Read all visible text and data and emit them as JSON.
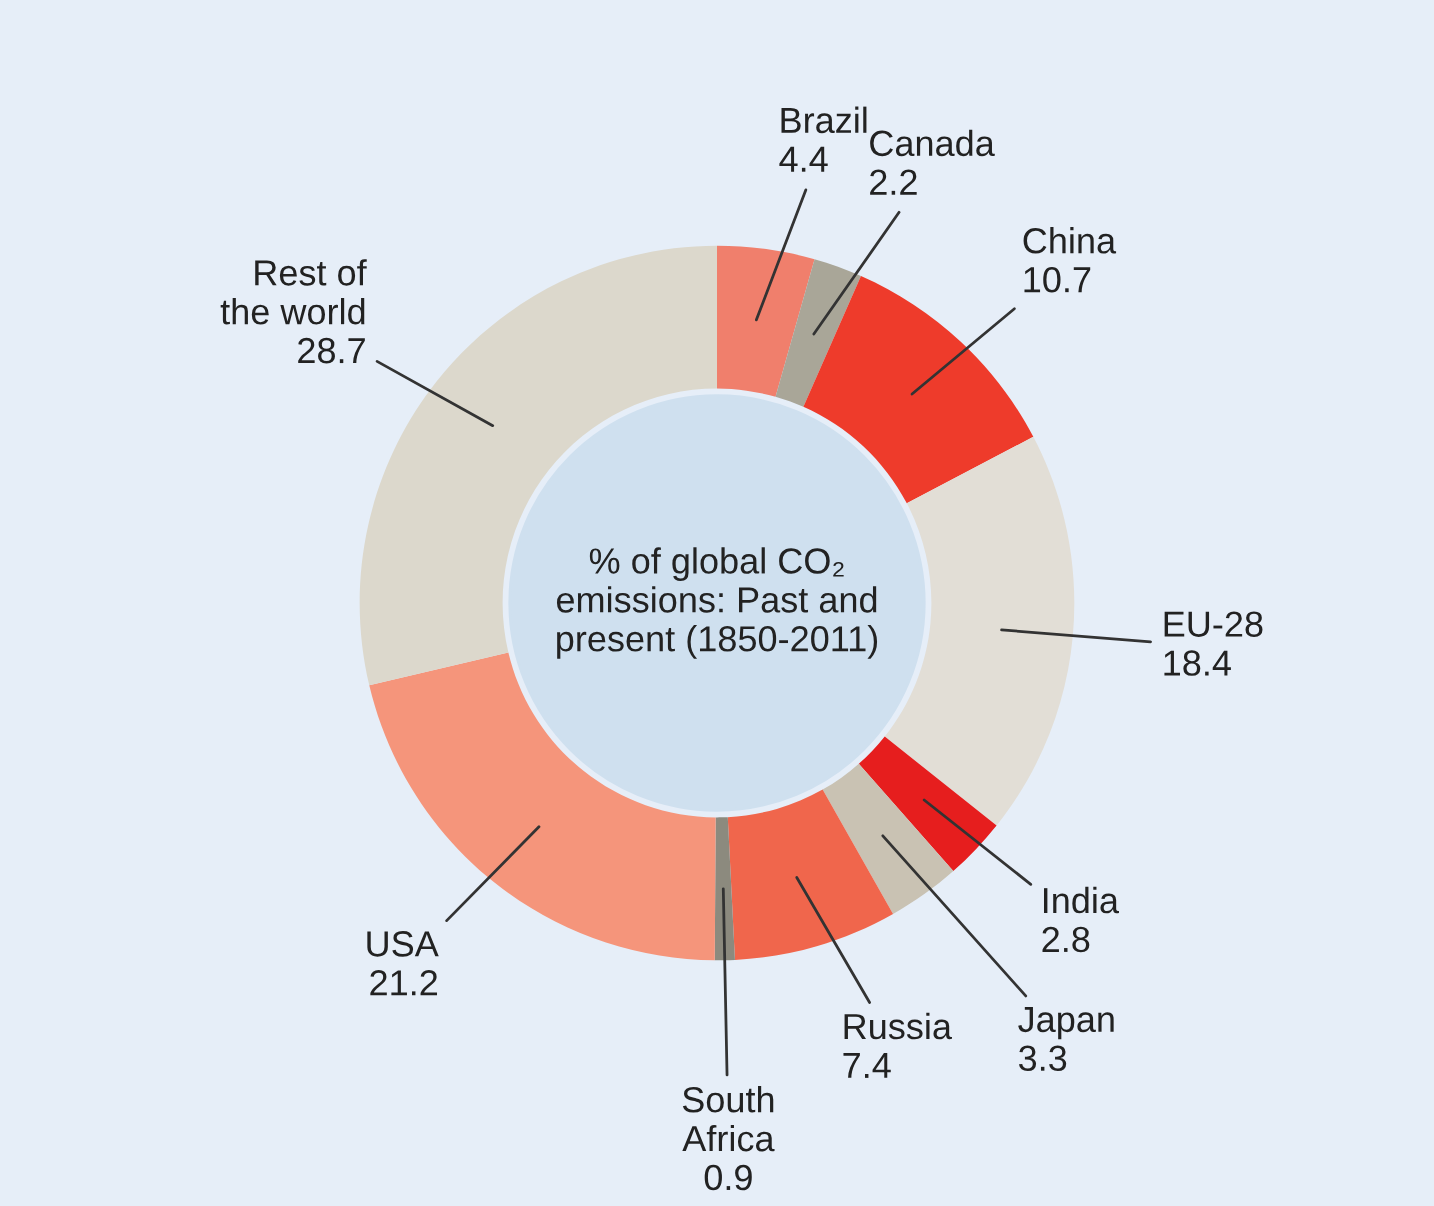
{
  "chart_data": {
    "type": "donut",
    "title": "% of global CO₂ emissions: Past and present (1850-2011)",
    "categories": [
      "Brazil",
      "Canada",
      "China",
      "EU-28",
      "India",
      "Japan",
      "Russia",
      "South Africa",
      "USA",
      "Rest of the world"
    ],
    "values": [
      4.4,
      2.2,
      10.7,
      18.4,
      2.8,
      3.3,
      7.4,
      0.9,
      21.2,
      28.7
    ],
    "colors": [
      "#f07f6c",
      "#a9a698",
      "#ee3b2b",
      "#e2ded6",
      "#e61e1e",
      "#c9c2b3",
      "#f0664c",
      "#8c8a7e",
      "#f5957b",
      "#dcd8cc"
    ],
    "data_labels": true
  }
}
